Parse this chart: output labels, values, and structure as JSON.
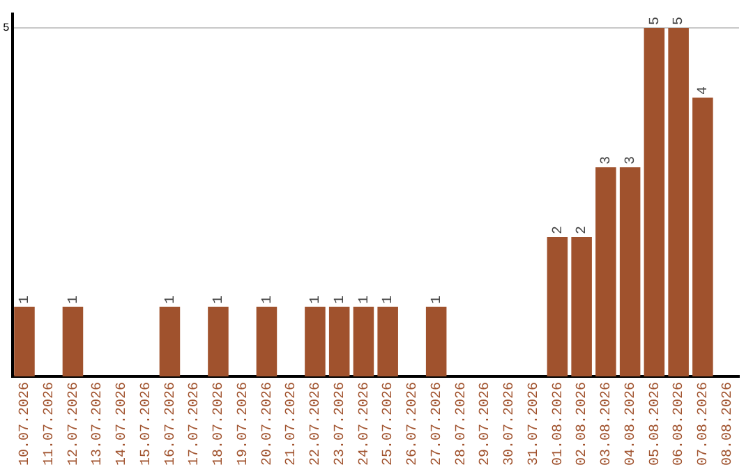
{
  "chart_data": {
    "type": "bar",
    "categories": [
      "10.07.2026",
      "11.07.2026",
      "12.07.2026",
      "13.07.2026",
      "14.07.2026",
      "15.07.2026",
      "16.07.2026",
      "17.07.2026",
      "18.07.2026",
      "19.07.2026",
      "20.07.2026",
      "21.07.2026",
      "22.07.2026",
      "23.07.2026",
      "24.07.2026",
      "25.07.2026",
      "26.07.2026",
      "27.07.2026",
      "28.07.2026",
      "29.07.2026",
      "30.07.2026",
      "31.07.2026",
      "01.08.2026",
      "02.08.2026",
      "03.08.2026",
      "04.08.2026",
      "05.08.2026",
      "06.08.2026",
      "07.08.2026",
      "08.08.2026"
    ],
    "values": [
      1,
      0,
      1,
      0,
      0,
      0,
      1,
      0,
      1,
      0,
      1,
      0,
      1,
      1,
      1,
      1,
      0,
      1,
      0,
      0,
      0,
      0,
      2,
      2,
      3,
      3,
      5,
      5,
      4,
      0
    ],
    "value_labels": [
      "1",
      null,
      "1",
      null,
      null,
      null,
      "1",
      null,
      "1",
      null,
      "1",
      null,
      "1",
      "1",
      "1",
      "1",
      null,
      "1",
      null,
      null,
      null,
      null,
      "2",
      "2",
      "3",
      "3",
      "5",
      "5",
      "4",
      null
    ],
    "color": "#a0522d",
    "ylim": [
      0,
      5.2
    ],
    "yticks": [
      5
    ],
    "grid": "y",
    "legend": false
  }
}
